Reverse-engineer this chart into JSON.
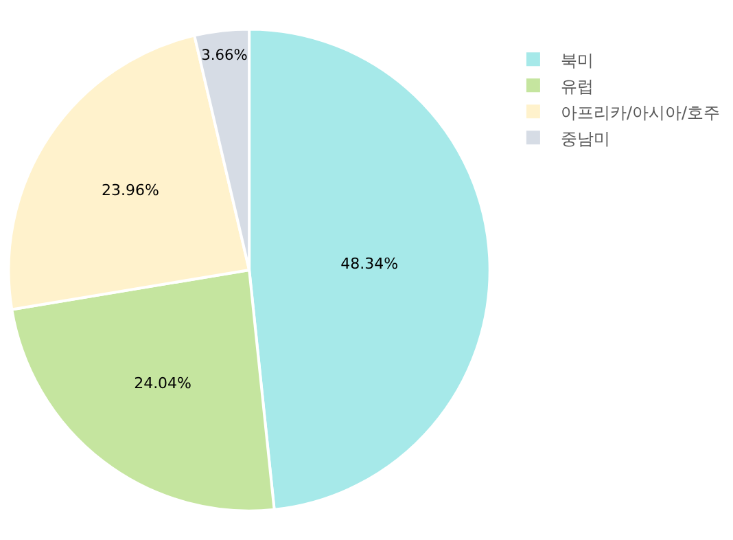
{
  "chart_data": {
    "type": "pie",
    "categories": [
      "북미",
      "유럽",
      "아프리카/아시아/호주",
      "중남미"
    ],
    "values": [
      48.34,
      24.04,
      23.96,
      3.66
    ],
    "value_labels": [
      "48.34%",
      "24.04%",
      "23.96%",
      "3.66%"
    ],
    "colors": [
      "#a6e9e9",
      "#c5e59f",
      "#fff2cc",
      "#d6dce5"
    ],
    "legend": "top right"
  }
}
